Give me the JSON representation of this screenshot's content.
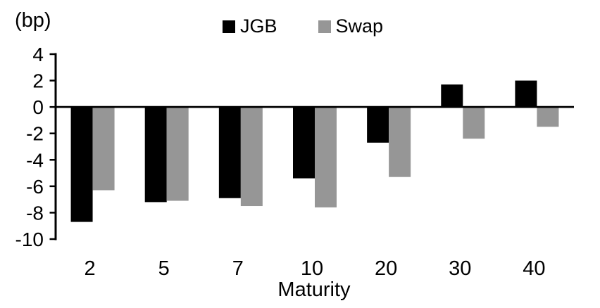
{
  "chart_data": {
    "type": "bar",
    "title": "",
    "unit_label": "(bp)",
    "xlabel": "Maturity",
    "ylabel": "",
    "categories": [
      "2",
      "5",
      "7",
      "10",
      "20",
      "30",
      "40"
    ],
    "series": [
      {
        "name": "JGB",
        "color": "#000000",
        "values": [
          -8.7,
          -7.2,
          -6.9,
          -5.4,
          -2.7,
          1.7,
          2.0
        ]
      },
      {
        "name": "Swap",
        "color": "#969696",
        "values": [
          -6.3,
          -7.1,
          -7.5,
          -7.6,
          -5.3,
          -2.4,
          -1.5
        ]
      }
    ],
    "yticks": [
      4,
      2,
      0,
      -2,
      -4,
      -6,
      -8,
      -10
    ],
    "ylim": [
      -10,
      4
    ],
    "grid": false,
    "legend_position": "top-center"
  }
}
